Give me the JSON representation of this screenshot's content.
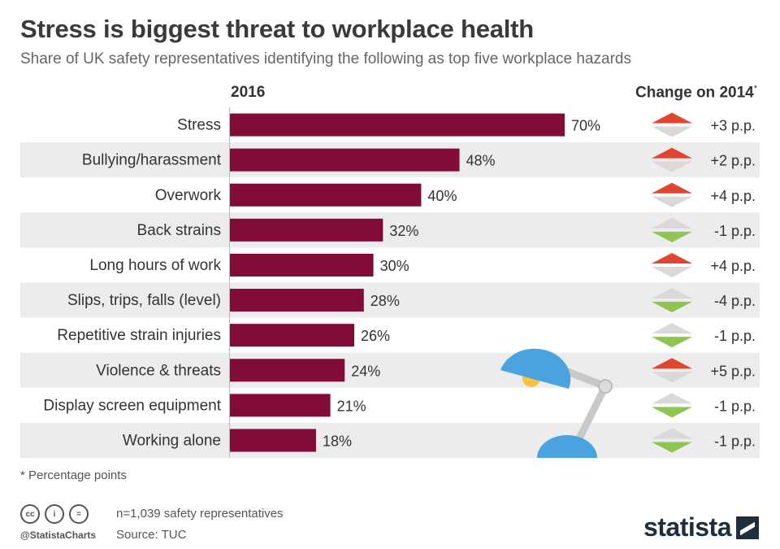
{
  "title": "Stress is biggest threat to workplace health",
  "subtitle": "Share of UK safety representatives identifying the following as top five workplace hazards",
  "left_header": "2016",
  "right_header": "Change on 2014",
  "right_header_mark": "*",
  "footnote": "* Percentage points",
  "note": "n=1,039 safety representatives",
  "source": "Source: TUC",
  "handle": "@StatistaCharts",
  "brand": "statista",
  "license_icons": [
    "cc",
    "i",
    "="
  ],
  "colors": {
    "bar": "#820b38",
    "stripe": "#ececec",
    "up": "#e0452f",
    "down": "#8ec552",
    "neutral": "#d9d9d9"
  },
  "chart_data": {
    "type": "bar",
    "orientation": "horizontal",
    "title": "Stress is biggest threat to workplace health",
    "categories": [
      "Stress",
      "Bullying/harassment",
      "Overwork",
      "Back strains",
      "Long hours of work",
      "Slips, trips, falls (level)",
      "Repetitive strain injuries",
      "Violence & threats",
      "Display screen equipment",
      "Working alone"
    ],
    "values": [
      70,
      48,
      40,
      32,
      30,
      28,
      26,
      24,
      21,
      18
    ],
    "value_labels": [
      "70%",
      "48%",
      "40%",
      "32%",
      "30%",
      "28%",
      "26%",
      "24%",
      "21%",
      "18%"
    ],
    "change": [
      3,
      2,
      4,
      -1,
      4,
      -4,
      -1,
      5,
      -1,
      -1
    ],
    "change_labels": [
      "+3 p.p.",
      "+2 p.p.",
      "+4 p.p.",
      "-1 p.p.",
      "+4 p.p.",
      "-4 p.p.",
      "-1 p.p.",
      "+5 p.p.",
      "-1 p.p.",
      "-1 p.p."
    ],
    "xlim": [
      0,
      70
    ],
    "unit": "%"
  }
}
